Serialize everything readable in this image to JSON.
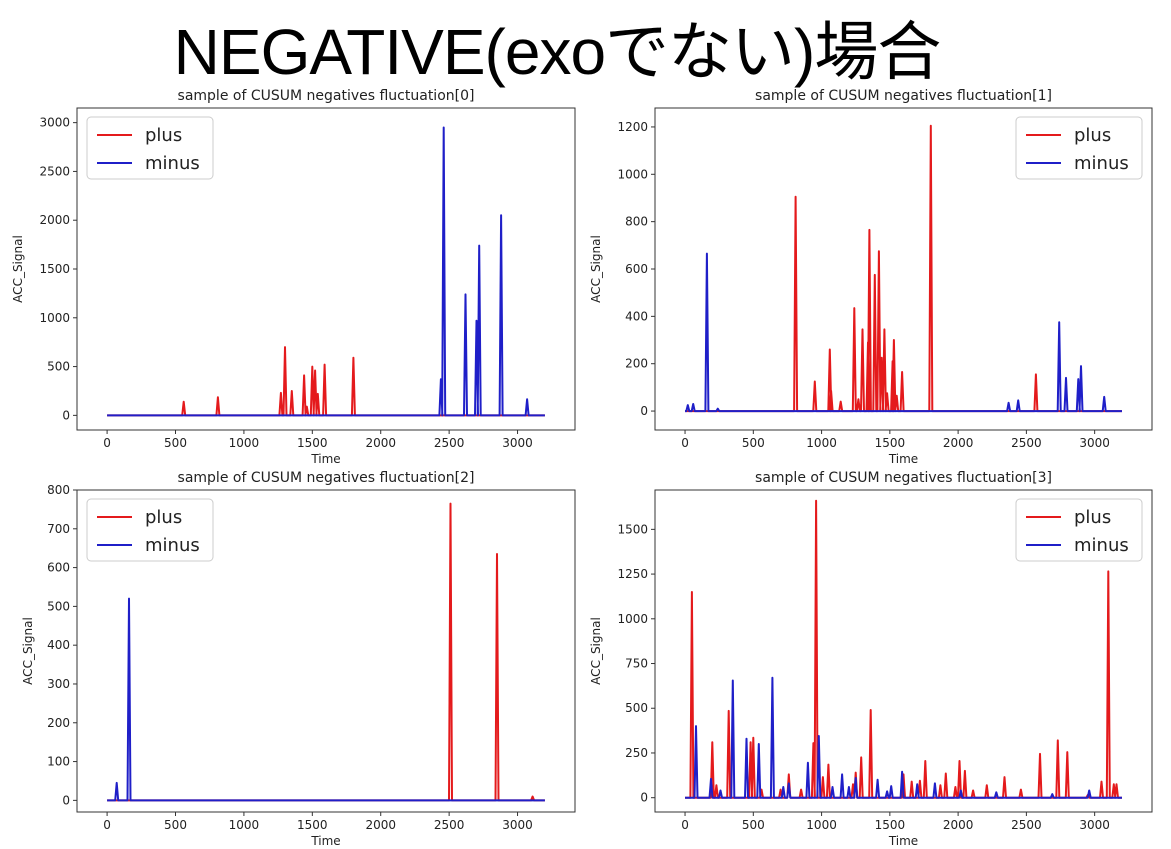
{
  "page_title": "NEGATIVE(exoでない)場合",
  "colors": {
    "plus": "#e41a1c",
    "minus": "#1f1fc8"
  },
  "chart_data": [
    {
      "type": "line",
      "title": "sample of CUSUM negatives fluctuation[0]",
      "xlabel": "Time",
      "ylabel": "ACC_Signal",
      "xlim": [
        -220,
        3420
      ],
      "ylim": [
        -150,
        3150
      ],
      "xticks": [
        0,
        500,
        1000,
        1500,
        2000,
        2500,
        3000
      ],
      "yticks": [
        0,
        500,
        1000,
        1500,
        2000,
        2500,
        3000
      ],
      "legend": {
        "position": "top-left",
        "entries": [
          "plus",
          "minus"
        ]
      },
      "series": [
        {
          "name": "plus",
          "color": "#e41a1c",
          "spikes": [
            [
              560,
              140
            ],
            [
              810,
              185
            ],
            [
              1270,
              230
            ],
            [
              1300,
              700
            ],
            [
              1350,
              250
            ],
            [
              1440,
              410
            ],
            [
              1460,
              90
            ],
            [
              1500,
              500
            ],
            [
              1520,
              460
            ],
            [
              1540,
              220
            ],
            [
              1590,
              520
            ],
            [
              1800,
              590
            ]
          ]
        },
        {
          "name": "minus",
          "color": "#1f1fc8",
          "spikes": [
            [
              2440,
              370
            ],
            [
              2460,
              2950
            ],
            [
              2620,
              1240
            ],
            [
              2700,
              970
            ],
            [
              2720,
              1740
            ],
            [
              2880,
              2050
            ],
            [
              3070,
              165
            ]
          ]
        }
      ]
    },
    {
      "type": "line",
      "title": "sample of CUSUM negatives fluctuation[1]",
      "xlabel": "Time",
      "ylabel": "ACC_Signal",
      "xlim": [
        -220,
        3420
      ],
      "ylim": [
        -80,
        1280
      ],
      "xticks": [
        0,
        500,
        1000,
        1500,
        2000,
        2500,
        3000
      ],
      "yticks": [
        0,
        200,
        400,
        600,
        800,
        1000,
        1200
      ],
      "legend": {
        "position": "top-right",
        "entries": [
          "plus",
          "minus"
        ]
      },
      "series": [
        {
          "name": "plus",
          "color": "#e41a1c",
          "spikes": [
            [
              810,
              905
            ],
            [
              950,
              125
            ],
            [
              1060,
              260
            ],
            [
              1070,
              85
            ],
            [
              1140,
              40
            ],
            [
              1240,
              435
            ],
            [
              1270,
              50
            ],
            [
              1300,
              345
            ],
            [
              1340,
              290
            ],
            [
              1350,
              765
            ],
            [
              1390,
              575
            ],
            [
              1420,
              675
            ],
            [
              1440,
              225
            ],
            [
              1460,
              345
            ],
            [
              1480,
              75
            ],
            [
              1520,
              210
            ],
            [
              1530,
              300
            ],
            [
              1550,
              65
            ],
            [
              1590,
              165
            ],
            [
              1800,
              1205
            ],
            [
              2570,
              155
            ]
          ]
        },
        {
          "name": "minus",
          "color": "#1f1fc8",
          "spikes": [
            [
              20,
              25
            ],
            [
              60,
              30
            ],
            [
              160,
              665
            ],
            [
              240,
              10
            ],
            [
              2370,
              35
            ],
            [
              2440,
              45
            ],
            [
              2740,
              375
            ],
            [
              2790,
              140
            ],
            [
              2880,
              135
            ],
            [
              2900,
              190
            ],
            [
              3070,
              60
            ]
          ]
        }
      ]
    },
    {
      "type": "line",
      "title": "sample of CUSUM negatives fluctuation[2]",
      "xlabel": "Time",
      "ylabel": "ACC_Signal",
      "xlim": [
        -220,
        3420
      ],
      "ylim": [
        -30,
        800
      ],
      "xticks": [
        0,
        500,
        1000,
        1500,
        2000,
        2500,
        3000
      ],
      "yticks": [
        0,
        100,
        200,
        300,
        400,
        500,
        600,
        700,
        800
      ],
      "legend": {
        "position": "top-left",
        "entries": [
          "plus",
          "minus"
        ]
      },
      "series": [
        {
          "name": "plus",
          "color": "#e41a1c",
          "spikes": [
            [
              2510,
              765
            ],
            [
              2850,
              635
            ],
            [
              3110,
              10
            ]
          ]
        },
        {
          "name": "minus",
          "color": "#1f1fc8",
          "spikes": [
            [
              70,
              45
            ],
            [
              160,
              520
            ]
          ]
        }
      ]
    },
    {
      "type": "line",
      "title": "sample of CUSUM negatives fluctuation[3]",
      "xlabel": "Time",
      "ylabel": "ACC_Signal",
      "xlim": [
        -220,
        3420
      ],
      "ylim": [
        -80,
        1720
      ],
      "xticks": [
        0,
        500,
        1000,
        1500,
        2000,
        2500,
        3000
      ],
      "yticks": [
        0,
        250,
        500,
        750,
        1000,
        1250,
        1500
      ],
      "legend": {
        "position": "top-right",
        "entries": [
          "plus",
          "minus"
        ]
      },
      "series": [
        {
          "name": "plus",
          "color": "#e41a1c",
          "spikes": [
            [
              50,
              1150
            ],
            [
              200,
              310
            ],
            [
              230,
              70
            ],
            [
              320,
              485
            ],
            [
              480,
              310
            ],
            [
              500,
              335
            ],
            [
              560,
              45
            ],
            [
              700,
              45
            ],
            [
              760,
              130
            ],
            [
              850,
              45
            ],
            [
              940,
              305
            ],
            [
              960,
              1660
            ],
            [
              1010,
              115
            ],
            [
              1050,
              185
            ],
            [
              1230,
              75
            ],
            [
              1250,
              140
            ],
            [
              1290,
              225
            ],
            [
              1360,
              490
            ],
            [
              1600,
              130
            ],
            [
              1660,
              90
            ],
            [
              1720,
              95
            ],
            [
              1760,
              205
            ],
            [
              1870,
              70
            ],
            [
              1910,
              135
            ],
            [
              1980,
              60
            ],
            [
              2010,
              205
            ],
            [
              2050,
              150
            ],
            [
              2110,
              40
            ],
            [
              2210,
              70
            ],
            [
              2340,
              115
            ],
            [
              2460,
              45
            ],
            [
              2600,
              245
            ],
            [
              2730,
              320
            ],
            [
              2800,
              255
            ],
            [
              2950,
              15
            ],
            [
              3050,
              90
            ],
            [
              3100,
              1265
            ],
            [
              3140,
              75
            ],
            [
              3160,
              75
            ]
          ]
        },
        {
          "name": "minus",
          "color": "#1f1fc8",
          "spikes": [
            [
              80,
              400
            ],
            [
              190,
              105
            ],
            [
              260,
              40
            ],
            [
              350,
              655
            ],
            [
              450,
              330
            ],
            [
              540,
              300
            ],
            [
              640,
              670
            ],
            [
              720,
              60
            ],
            [
              760,
              80
            ],
            [
              900,
              195
            ],
            [
              980,
              345
            ],
            [
              1080,
              60
            ],
            [
              1150,
              130
            ],
            [
              1200,
              60
            ],
            [
              1250,
              110
            ],
            [
              1410,
              100
            ],
            [
              1480,
              35
            ],
            [
              1510,
              65
            ],
            [
              1590,
              145
            ],
            [
              1700,
              75
            ],
            [
              1830,
              80
            ],
            [
              2020,
              40
            ],
            [
              2280,
              30
            ],
            [
              2690,
              20
            ],
            [
              2960,
              40
            ]
          ]
        }
      ]
    }
  ]
}
